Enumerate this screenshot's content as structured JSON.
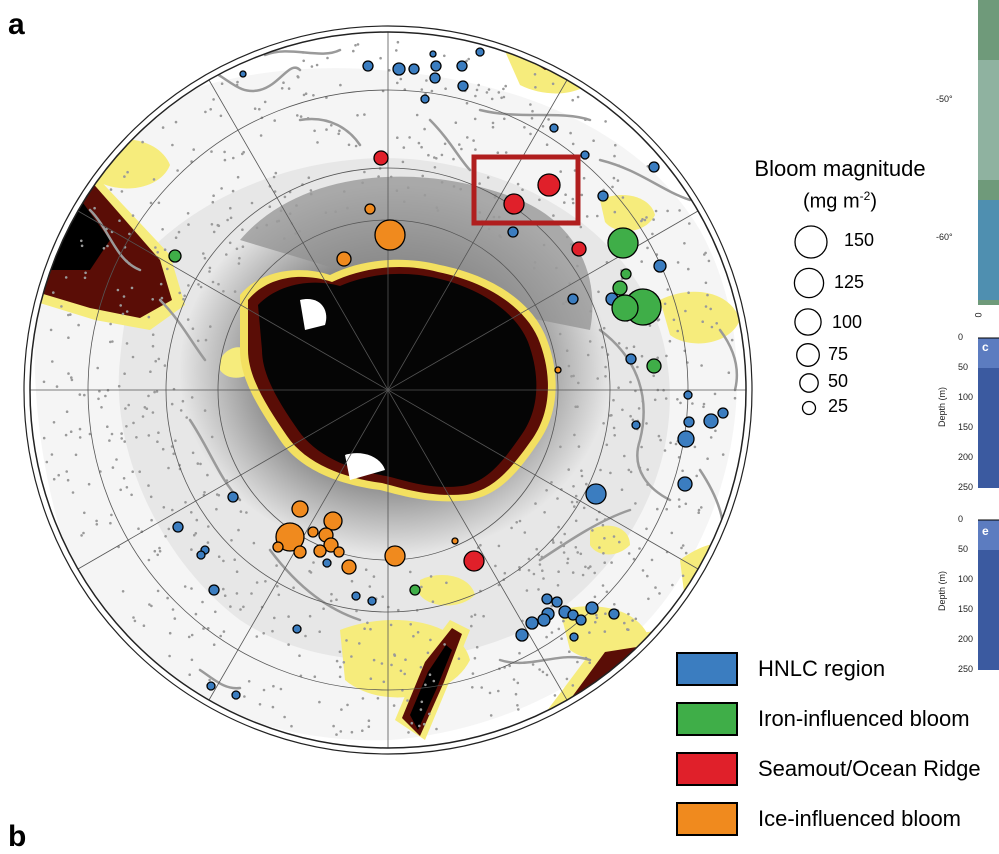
{
  "panel_labels": {
    "a": "a",
    "b": "b"
  },
  "legend_size": {
    "title": "Bloom magnitude",
    "unit_prefix": "(mg m",
    "unit_sup": "-2",
    "unit_suffix": ")",
    "entries": [
      {
        "label": "150",
        "value": 150
      },
      {
        "label": "125",
        "value": 125
      },
      {
        "label": "100",
        "value": 100
      },
      {
        "label": "75",
        "value": 75
      },
      {
        "label": "50",
        "value": 50
      },
      {
        "label": "25",
        "value": 25
      }
    ]
  },
  "legend_class": [
    {
      "label": "HNLC region",
      "color": "#3b7dc0"
    },
    {
      "label": "Iron-influenced bloom",
      "color": "#3fae48"
    },
    {
      "label": "Seamout/Ocean Ridge",
      "color": "#e0202a"
    },
    {
      "label": "Ice-influenced bloom",
      "color": "#f08a1e"
    }
  ],
  "side_panels": {
    "lat_ticks": [
      "-50°",
      "-60°"
    ],
    "panel_c": "c",
    "panel_e": "e",
    "depth_label": "Depth (m)",
    "depth_ticks_top": [
      "0",
      "50",
      "100",
      "150",
      "200",
      "250"
    ],
    "depth_ticks_bottom": [
      "0",
      "50",
      "100",
      "150",
      "200",
      "250"
    ],
    "x_tick_zero": "0"
  },
  "colors": {
    "land": "#000000",
    "high_chl": "#5a0d06",
    "mid_chl": "#f5e96a",
    "gray_ice": "#9a9a9a",
    "float_track": "#9a9a9a",
    "highlight_box": "#b01e1e"
  }
}
